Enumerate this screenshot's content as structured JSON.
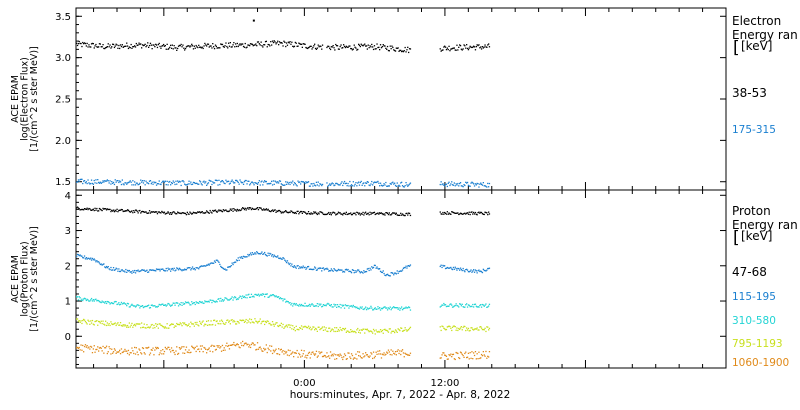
{
  "colors": {
    "black": "#000000",
    "blue": "#1a7fd0",
    "cyan": "#22d4d4",
    "yellow": "#c8e01e",
    "orange": "#e08a1a"
  },
  "footer": {
    "xlabel": "hours:minutes, Apr.  7, 2022 - Apr.  8, 2022"
  },
  "chart_data": [
    {
      "type": "scatter",
      "panel": "electron",
      "ylabel_lines": [
        "ACE EPAM",
        "log(Electron Flux)",
        "[1/(cm^2 s ster MeV)]"
      ],
      "legend_title_lines": [
        "Electron",
        "Energy ran",
        "[keV]"
      ],
      "yticks": [
        "1.5",
        "2.0",
        "2.5",
        "3.0",
        "3.5"
      ],
      "ylim": [
        1.4,
        3.6
      ],
      "xlim_hours_from_midnight": [
        -19.5,
        36
      ],
      "xticks": [
        {
          "label": "0:00",
          "hours": 0
        },
        {
          "label": "12:00",
          "hours": 12
        }
      ],
      "data_gaps_hours": [
        [
          1.5,
          1.8
        ],
        [
          9,
          11.5
        ]
      ],
      "series": [
        {
          "name": "38-53",
          "color_key": "black",
          "start": -19.5,
          "end": 15.8,
          "points": [
            [
              -19.5,
              3.17
            ],
            [
              -17,
              3.14
            ],
            [
              -14,
              3.16
            ],
            [
              -11,
              3.13
            ],
            [
              -8,
              3.15
            ],
            [
              -5,
              3.16
            ],
            [
              -2,
              3.18
            ],
            [
              0,
              3.15
            ],
            [
              1,
              3.14
            ],
            [
              3,
              3.13
            ],
            [
              6,
              3.14
            ],
            [
              9,
              3.1
            ],
            [
              11.5,
              3.12
            ],
            [
              13,
              3.13
            ],
            [
              15.8,
              3.14
            ]
          ],
          "noise": 0.035
        },
        {
          "name": "175-315",
          "color_key": "blue",
          "start": -19.5,
          "end": 15.8,
          "points": [
            [
              -19.5,
              1.51
            ],
            [
              -15,
              1.5
            ],
            [
              -10,
              1.49
            ],
            [
              -6,
              1.5
            ],
            [
              -2,
              1.49
            ],
            [
              2,
              1.48
            ],
            [
              6,
              1.49
            ],
            [
              9,
              1.47
            ],
            [
              11.5,
              1.48
            ],
            [
              15.8,
              1.47
            ]
          ],
          "noise": 0.03
        }
      ],
      "outliers": [
        {
          "x": -4.4,
          "y": 3.46,
          "color_key": "black"
        }
      ]
    },
    {
      "type": "scatter",
      "panel": "proton",
      "ylabel_lines": [
        "ACE EPAM",
        "log(Proton Flux)",
        "[1/(cm^2 s ster MeV)]"
      ],
      "legend_title_lines": [
        "Proton",
        "Energy ran",
        "[keV]"
      ],
      "yticks": [
        "0",
        "1",
        "2",
        "3",
        "4"
      ],
      "ylim": [
        -0.9,
        4.15
      ],
      "xlim_hours_from_midnight": [
        -19.5,
        36
      ],
      "xticks": [
        {
          "label": "0:00",
          "hours": 0
        },
        {
          "label": "12:00",
          "hours": 12
        }
      ],
      "data_gaps_hours": [
        [
          9,
          11.5
        ]
      ],
      "series": [
        {
          "name": "47-68",
          "color_key": "black",
          "start": -19.5,
          "end": 15.8,
          "points": [
            [
              -19.5,
              3.65
            ],
            [
              -17,
              3.6
            ],
            [
              -14,
              3.55
            ],
            [
              -10,
              3.5
            ],
            [
              -7,
              3.58
            ],
            [
              -4.5,
              3.65
            ],
            [
              -2,
              3.55
            ],
            [
              0,
              3.52
            ],
            [
              3,
              3.5
            ],
            [
              6,
              3.5
            ],
            [
              8.8,
              3.48
            ],
            [
              11.5,
              3.52
            ],
            [
              15.8,
              3.5
            ]
          ],
          "noise": 0.04
        },
        {
          "name": "115-195",
          "color_key": "blue",
          "start": -19.5,
          "end": 15.8,
          "points": [
            [
              -19.5,
              2.3
            ],
            [
              -18,
              2.2
            ],
            [
              -16.8,
              1.95
            ],
            [
              -15,
              1.85
            ],
            [
              -12,
              1.9
            ],
            [
              -9,
              1.95
            ],
            [
              -7.5,
              2.15
            ],
            [
              -6.8,
              1.9
            ],
            [
              -5.5,
              2.25
            ],
            [
              -4,
              2.4
            ],
            [
              -2,
              2.25
            ],
            [
              -1,
              2.0
            ],
            [
              2,
              1.9
            ],
            [
              5,
              1.85
            ],
            [
              6,
              2.0
            ],
            [
              7,
              1.75
            ],
            [
              8,
              1.85
            ],
            [
              8.8,
              2.0
            ],
            [
              11.5,
              2.0
            ],
            [
              13.5,
              1.9
            ],
            [
              15,
              1.85
            ],
            [
              15.8,
              1.95
            ]
          ],
          "noise": 0.045
        },
        {
          "name": "310-580",
          "color_key": "cyan",
          "start": -19.5,
          "end": 15.8,
          "points": [
            [
              -19.5,
              1.1
            ],
            [
              -17,
              1.0
            ],
            [
              -14,
              0.85
            ],
            [
              -10,
              0.95
            ],
            [
              -7,
              1.05
            ],
            [
              -4,
              1.2
            ],
            [
              -2.5,
              1.15
            ],
            [
              -1,
              0.92
            ],
            [
              2,
              0.9
            ],
            [
              5,
              0.82
            ],
            [
              8.8,
              0.8
            ],
            [
              11.5,
              0.9
            ],
            [
              15.8,
              0.88
            ]
          ],
          "noise": 0.05
        },
        {
          "name": "795-1193",
          "color_key": "yellow",
          "start": -19.5,
          "end": 15.8,
          "points": [
            [
              -19.5,
              0.45
            ],
            [
              -16,
              0.35
            ],
            [
              -12,
              0.3
            ],
            [
              -8,
              0.4
            ],
            [
              -4,
              0.45
            ],
            [
              -1,
              0.25
            ],
            [
              3,
              0.2
            ],
            [
              6,
              0.15
            ],
            [
              8.8,
              0.2
            ],
            [
              11.5,
              0.25
            ],
            [
              15.8,
              0.22
            ]
          ],
          "noise": 0.07
        },
        {
          "name": "1060-1900",
          "color_key": "orange",
          "start": -19.5,
          "end": 15.8,
          "points": [
            [
              -19.5,
              -0.3
            ],
            [
              -16,
              -0.4
            ],
            [
              -12,
              -0.4
            ],
            [
              -8,
              -0.35
            ],
            [
              -5,
              -0.2
            ],
            [
              -3,
              -0.35
            ],
            [
              0,
              -0.5
            ],
            [
              3,
              -0.55
            ],
            [
              6,
              -0.5
            ],
            [
              8.8,
              -0.45
            ],
            [
              11.5,
              -0.55
            ],
            [
              15.8,
              -0.5
            ]
          ],
          "noise": 0.11
        }
      ],
      "outliers": []
    }
  ]
}
